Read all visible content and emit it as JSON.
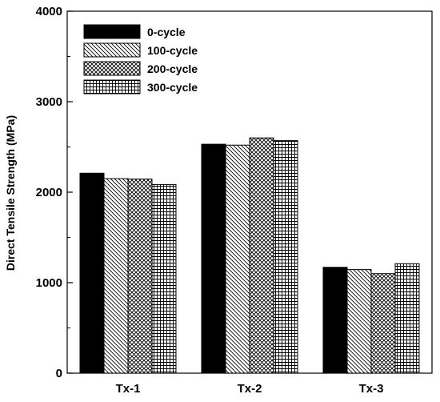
{
  "chart_data": {
    "type": "bar",
    "title": "",
    "xlabel": "",
    "ylabel": "Direct Tensile Strength (MPa)",
    "ylim": [
      0,
      4000
    ],
    "yticks": [
      0,
      1000,
      2000,
      3000,
      4000
    ],
    "categories": [
      "Tx-1",
      "Tx-2",
      "Tx-3"
    ],
    "series": [
      {
        "name": "0-cycle",
        "pattern": "solid",
        "values": [
          2210,
          2530,
          1170
        ]
      },
      {
        "name": "100-cycle",
        "pattern": "diagonal-hatch",
        "values": [
          2150,
          2520,
          1145
        ]
      },
      {
        "name": "200-cycle",
        "pattern": "crosshatch",
        "values": [
          2145,
          2600,
          1100
        ]
      },
      {
        "name": "300-cycle",
        "pattern": "grid",
        "values": [
          2085,
          2570,
          1210
        ]
      }
    ],
    "grid": false,
    "legend_position": "top-left",
    "colors": {
      "axis": "#000000",
      "solid_fill": "#000000",
      "background": "#ffffff"
    }
  }
}
